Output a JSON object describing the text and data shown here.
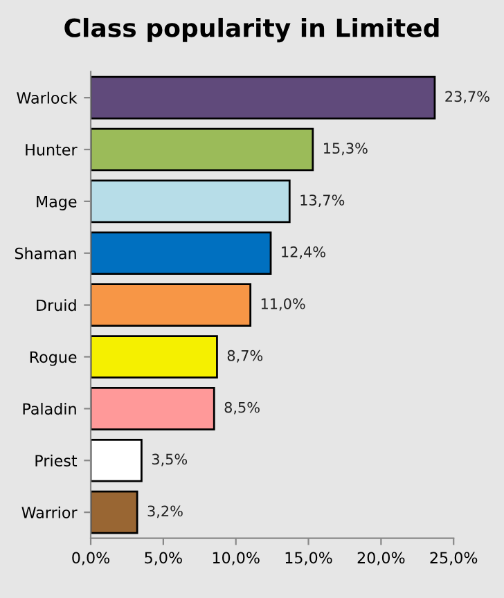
{
  "chart_data": {
    "type": "bar",
    "orientation": "horizontal",
    "title": "Class popularity in Limited",
    "categories": [
      "Warlock",
      "Hunter",
      "Mage",
      "Shaman",
      "Druid",
      "Rogue",
      "Paladin",
      "Priest",
      "Warrior"
    ],
    "values": [
      23.7,
      15.3,
      13.7,
      12.4,
      11.0,
      8.7,
      8.5,
      3.5,
      3.2
    ],
    "colors": [
      "#604a7b",
      "#9bbb59",
      "#b7dde8",
      "#0070c0",
      "#f79646",
      "#f5f000",
      "#ff9999",
      "#ffffff",
      "#996633"
    ],
    "value_labels": [
      "23,7%",
      "15,3%",
      "13,7%",
      "12,4%",
      "11,0%",
      "8,7%",
      "8,5%",
      "3,5%",
      "3,2%"
    ],
    "xlim": [
      0,
      25
    ],
    "xticks": [
      {
        "value": 0,
        "label": "0,0%"
      },
      {
        "value": 5,
        "label": "5,0%"
      },
      {
        "value": 10,
        "label": "10,0%"
      },
      {
        "value": 15,
        "label": "15,0%"
      },
      {
        "value": 20,
        "label": "20,0%"
      },
      {
        "value": 25,
        "label": "25,0%"
      }
    ],
    "grid": false,
    "legend": false
  }
}
